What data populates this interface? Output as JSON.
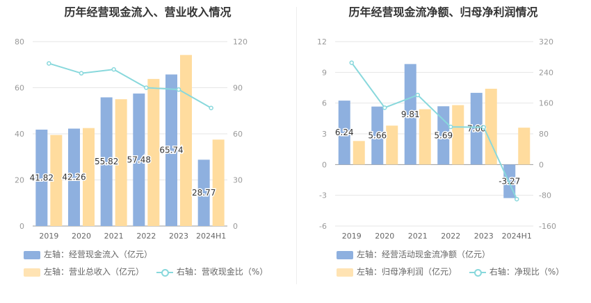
{
  "colors": {
    "bar1": "#8eb0df",
    "bar2": "#ffdc9e",
    "line": "#88d8dc",
    "grid": "#e6e6e6",
    "axis_text": "#999999"
  },
  "chart_data": [
    {
      "type": "bar",
      "title": "历年经营现金流入、营业收入情况",
      "categories": [
        "2019",
        "2020",
        "2021",
        "2022",
        "2023",
        "2024H1"
      ],
      "left_axis": {
        "min": 0,
        "max": 80,
        "ticks": [
          "0",
          "20",
          "40",
          "60",
          "80"
        ]
      },
      "right_axis": {
        "min": 0,
        "max": 120,
        "ticks": [
          "0",
          "30",
          "60",
          "90",
          "120"
        ]
      },
      "series": [
        {
          "name": "左轴：经营现金流入（亿元）",
          "kind": "bar",
          "axis": "left",
          "values": [
            41.82,
            42.26,
            55.82,
            57.48,
            65.74,
            28.77
          ],
          "labels": [
            "41.82",
            "42.26",
            "55.82",
            "57.48",
            "65.74",
            "28.77"
          ]
        },
        {
          "name": "左轴：营业总收入（亿元）",
          "kind": "bar",
          "axis": "left",
          "values": [
            39.5,
            42.5,
            55.0,
            63.8,
            74.2,
            37.5
          ]
        },
        {
          "name": "右轴：营收现金比（%）",
          "kind": "line",
          "axis": "right",
          "values": [
            105.8,
            99.4,
            101.9,
            90.0,
            88.8,
            76.8
          ]
        }
      ]
    },
    {
      "type": "bar",
      "title": "历年经营现金流净额、归母净利润情况",
      "categories": [
        "2019",
        "2020",
        "2021",
        "2022",
        "2023",
        "2024H1"
      ],
      "left_axis": {
        "min": -6,
        "max": 12,
        "ticks": [
          "-6",
          "-3",
          "0",
          "3",
          "6",
          "9",
          "12"
        ]
      },
      "right_axis": {
        "min": -160,
        "max": 320,
        "ticks": [
          "-160",
          "-80",
          "0",
          "80",
          "160",
          "240",
          "320"
        ]
      },
      "series": [
        {
          "name": "左轴：经营活动现金流净额（亿元）",
          "kind": "bar",
          "axis": "left",
          "values": [
            6.24,
            5.66,
            9.81,
            5.69,
            7.0,
            -3.27
          ],
          "labels": [
            "6.24",
            "5.66",
            "9.81",
            "5.69",
            "7.00",
            "-3.27"
          ]
        },
        {
          "name": "左轴：归母净利润（亿元）",
          "kind": "bar",
          "axis": "left",
          "values": [
            2.3,
            3.8,
            5.4,
            5.8,
            7.4,
            3.6
          ]
        },
        {
          "name": "右轴：净现比（%）",
          "kind": "line",
          "axis": "right",
          "values": [
            265,
            148,
            181,
            98,
            97,
            -90
          ]
        }
      ]
    }
  ]
}
